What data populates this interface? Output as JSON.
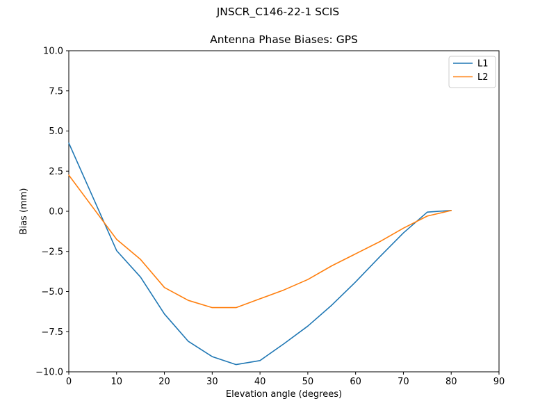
{
  "figure": {
    "suptitle": "JNSCR_C146-22-1 SCIS",
    "background": "#ffffff"
  },
  "chart_data": {
    "type": "line",
    "title": "Antenna Phase Biases: GPS",
    "xlabel": "Elevation angle (degrees)",
    "ylabel": "Bias (mm)",
    "xlim": [
      0,
      90
    ],
    "ylim": [
      -10,
      10
    ],
    "grid": false,
    "axis_color": "#000000",
    "x": [
      0,
      5,
      10,
      15,
      20,
      25,
      30,
      35,
      40,
      45,
      50,
      55,
      60,
      65,
      70,
      75,
      80
    ],
    "series": [
      {
        "name": "L1",
        "color": "#1f77b4",
        "values": [
          4.25,
          0.9,
          -2.45,
          -4.1,
          -6.4,
          -8.1,
          -9.05,
          -9.55,
          -9.3,
          -8.25,
          -7.15,
          -5.85,
          -4.4,
          -2.85,
          -1.35,
          -0.05,
          0.05
        ]
      },
      {
        "name": "L2",
        "color": "#ff7f0e",
        "values": [
          2.25,
          0.25,
          -1.75,
          -3.0,
          -4.75,
          -5.55,
          -6.0,
          -6.0,
          -5.45,
          -4.9,
          -4.25,
          -3.4,
          -2.65,
          -1.9,
          -1.05,
          -0.3,
          0.05
        ]
      }
    ],
    "xticks": [
      0,
      10,
      20,
      30,
      40,
      50,
      60,
      70,
      80,
      90
    ],
    "xtick_labels": [
      "0",
      "10",
      "20",
      "30",
      "40",
      "50",
      "60",
      "70",
      "80",
      "90"
    ],
    "yticks": [
      10,
      7.5,
      5,
      2.5,
      0,
      -2.5,
      -5,
      -7.5,
      -10
    ],
    "ytick_labels": [
      "10.0",
      "7.5",
      "5.0",
      "2.5",
      "0.0",
      "−2.5",
      "−5.0",
      "−7.5",
      "−10.0"
    ],
    "legend": {
      "position": "upper right",
      "entries": [
        "L1",
        "L2"
      ],
      "frame_color": "#cccccc"
    }
  }
}
